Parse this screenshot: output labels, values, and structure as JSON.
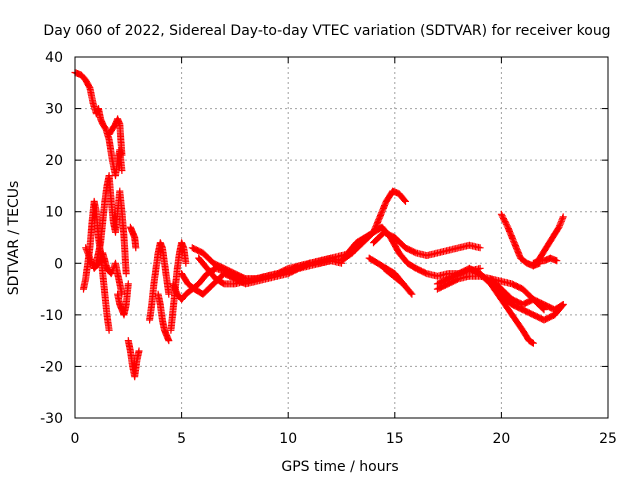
{
  "chart_data": {
    "type": "scatter",
    "title": "Day 060 of 2022, Sidereal Day-to-day VTEC variation (SDTVAR) for receiver koug",
    "xlabel": "GPS time / hours",
    "ylabel": "SDTVAR / TECUs",
    "xlim": [
      0,
      25
    ],
    "ylim": [
      -30,
      40
    ],
    "xticks": [
      0,
      5,
      10,
      15,
      20,
      25
    ],
    "yticks": [
      -30,
      -20,
      -10,
      0,
      10,
      20,
      30,
      40
    ],
    "xtick_labels": [
      "0",
      "5",
      "10",
      "15",
      "20",
      "25"
    ],
    "ytick_labels": [
      "-30",
      "-20",
      "-10",
      "0",
      "10",
      "20",
      "30",
      "40"
    ],
    "grid": true,
    "marker": "+",
    "color": "#ff0000",
    "series": [
      {
        "name": "track-1",
        "x": [
          0.0,
          0.3,
          0.5,
          0.7,
          0.85,
          1.0,
          1.1,
          1.2,
          1.3,
          1.45,
          1.6,
          1.75,
          1.9,
          2.0,
          2.1,
          2.2
        ],
        "y": [
          37,
          36.5,
          35.5,
          34,
          31,
          29,
          30,
          28,
          27,
          26,
          24,
          20,
          17,
          20,
          22,
          18
        ]
      },
      {
        "name": "track-2",
        "x": [
          1.6,
          1.75,
          1.9,
          2.0,
          2.1,
          2.15,
          2.2
        ],
        "y": [
          25,
          26,
          27,
          28,
          27,
          24,
          21
        ]
      },
      {
        "name": "track-3",
        "x": [
          0.4,
          0.5,
          0.6,
          0.7,
          0.8,
          0.9,
          1.0,
          1.1,
          1.2,
          1.3,
          1.4,
          1.5,
          1.6
        ],
        "y": [
          -5,
          -3,
          0,
          3,
          8,
          12,
          10,
          5,
          2,
          -2,
          -6,
          -10,
          -13
        ]
      },
      {
        "name": "track-4",
        "x": [
          1.0,
          1.1,
          1.2,
          1.3,
          1.4,
          1.5,
          1.6,
          1.7,
          1.8,
          1.9,
          2.0,
          2.1,
          2.2,
          2.3,
          2.4
        ],
        "y": [
          0,
          2,
          4,
          8,
          12,
          15,
          17,
          12,
          8,
          6,
          10,
          14,
          10,
          5,
          -2
        ]
      },
      {
        "name": "track-5",
        "x": [
          0.5,
          0.7,
          0.9,
          1.1,
          1.3,
          1.5,
          1.7,
          1.9,
          2.1,
          2.2
        ],
        "y": [
          3,
          1,
          -1,
          0,
          2,
          -1,
          -2,
          0,
          -4,
          -6
        ]
      },
      {
        "name": "track-6",
        "x": [
          2.0,
          2.1,
          2.2,
          2.3,
          2.4,
          2.5
        ],
        "y": [
          -6,
          -8,
          -9,
          -10,
          -8,
          -4
        ]
      },
      {
        "name": "track-7",
        "x": [
          2.5,
          2.6,
          2.7,
          2.8,
          2.9,
          3.0
        ],
        "y": [
          -15,
          -17,
          -20,
          -22,
          -19,
          -17
        ]
      },
      {
        "name": "track-8",
        "x": [
          2.6,
          2.7,
          2.8,
          2.85
        ],
        "y": [
          7,
          6,
          5,
          3
        ]
      },
      {
        "name": "track-9",
        "x": [
          3.5,
          3.6,
          3.7,
          3.8,
          3.9,
          4.0,
          4.1,
          4.2,
          4.3,
          4.4
        ],
        "y": [
          -11,
          -8,
          -4,
          -1,
          2,
          4,
          3,
          0,
          -3,
          -6
        ]
      },
      {
        "name": "track-10",
        "x": [
          3.9,
          4.0,
          4.1,
          4.2,
          4.3,
          4.4
        ],
        "y": [
          -6,
          -8,
          -11,
          -13,
          -14,
          -15
        ]
      },
      {
        "name": "track-11",
        "x": [
          4.5,
          4.6,
          4.7,
          4.8,
          4.9,
          5.0,
          5.1,
          5.2
        ],
        "y": [
          -13,
          -9,
          -5,
          -1,
          2,
          4,
          3,
          0
        ]
      },
      {
        "name": "track-12",
        "x": [
          4.6,
          4.8,
          5.0,
          5.2,
          5.5,
          5.8,
          6.2,
          6.6,
          7.0,
          7.5,
          8.0,
          8.5,
          9.0,
          9.5,
          10.0,
          10.5,
          11.0,
          11.5,
          12.0
        ],
        "y": [
          -4,
          -6,
          -7,
          -6,
          -5,
          -4,
          -2,
          -1,
          -1.5,
          -2.5,
          -3,
          -3,
          -2.5,
          -2,
          -1.5,
          -1,
          -0.5,
          0,
          0.5
        ]
      },
      {
        "name": "track-13",
        "x": [
          5.0,
          5.3,
          5.6,
          6.0,
          6.5,
          7.0,
          7.5,
          8.0,
          8.5,
          9.0,
          9.5,
          10.0,
          10.5,
          11.0,
          11.5,
          12.0,
          12.5
        ],
        "y": [
          -2,
          -4,
          -5,
          -6,
          -4,
          -2,
          -3,
          -4,
          -3.5,
          -3,
          -2.5,
          -2,
          -1,
          0,
          0.5,
          1,
          0.5
        ]
      },
      {
        "name": "track-14",
        "x": [
          5.5,
          6.0,
          6.5,
          7.0,
          7.5,
          8.0,
          8.5,
          9.0,
          9.5,
          10.0,
          10.5,
          11.0,
          11.5,
          12.0,
          12.5,
          13.0
        ],
        "y": [
          3,
          2,
          0,
          -1,
          -2,
          -3,
          -3,
          -2.5,
          -2,
          -1.5,
          -0.5,
          0,
          0.5,
          1,
          1.5,
          2
        ]
      },
      {
        "name": "track-15",
        "x": [
          5.8,
          6.2,
          6.6,
          7.0,
          7.5,
          8.0,
          8.5,
          9.0,
          9.5,
          10.0,
          10.5,
          11.0,
          11.5,
          12.0,
          12.5
        ],
        "y": [
          1,
          -1,
          -3,
          -4,
          -4,
          -3.5,
          -3,
          -2.5,
          -2,
          -1,
          -0.5,
          0,
          0,
          0.5,
          0
        ]
      },
      {
        "name": "track-16",
        "x": [
          12.5,
          13.0,
          13.5,
          14.0,
          14.3,
          14.6,
          14.9,
          15.2,
          15.5
        ],
        "y": [
          0.5,
          2,
          4,
          6,
          9,
          12,
          14,
          13.5,
          12
        ]
      },
      {
        "name": "track-17",
        "x": [
          12.8,
          13.2,
          13.6,
          14.0,
          14.4,
          14.8,
          15.2,
          15.6,
          16.0,
          16.5,
          17.0,
          17.5,
          18.0,
          18.5,
          19.0
        ],
        "y": [
          2,
          4,
          5,
          6,
          7,
          5,
          2,
          0,
          -1,
          -2,
          -2.5,
          -2,
          -2,
          -1.5,
          -1
        ]
      },
      {
        "name": "track-18",
        "x": [
          14.0,
          14.5,
          15.0,
          15.5,
          16.0,
          16.5,
          17.0,
          17.5,
          18.0,
          18.5,
          19.0
        ],
        "y": [
          4,
          6,
          5,
          3,
          2,
          1.5,
          2,
          2.5,
          3,
          3.5,
          3
        ]
      },
      {
        "name": "track-19",
        "x": [
          13.8,
          14.2,
          14.6,
          15.0,
          15.4,
          15.8
        ],
        "y": [
          1,
          0,
          -1,
          -2,
          -4,
          -6
        ]
      },
      {
        "name": "track-20",
        "x": [
          14.5,
          14.8,
          15.1,
          15.4
        ],
        "y": [
          -1,
          -2,
          -3,
          -4
        ]
      },
      {
        "name": "track-21",
        "x": [
          17.0,
          17.5,
          18.0,
          18.5,
          19.0,
          19.5,
          20.0,
          20.5,
          21.0,
          21.5,
          22.0,
          22.5,
          22.9
        ],
        "y": [
          -4,
          -3,
          -2,
          -1,
          -2,
          -4,
          -6,
          -8,
          -9,
          -10,
          -11,
          -10,
          -8
        ]
      },
      {
        "name": "track-22",
        "x": [
          18.5,
          19.0,
          19.5,
          20.0,
          20.5,
          21.0,
          21.3,
          21.5
        ],
        "y": [
          -1,
          -2,
          -4,
          -7,
          -10,
          -13,
          -15,
          -15.5
        ]
      },
      {
        "name": "track-23",
        "x": [
          17.0,
          17.5,
          18.0,
          18.5,
          19.0,
          19.5,
          20.0,
          20.5,
          21.0,
          21.5,
          22.0
        ],
        "y": [
          -5,
          -4,
          -3,
          -2.5,
          -2.5,
          -3,
          -3.5,
          -4,
          -5,
          -7,
          -9
        ]
      },
      {
        "name": "track-24",
        "x": [
          19.5,
          20.0,
          20.5,
          21.0,
          21.5,
          22.0,
          22.5,
          22.9
        ],
        "y": [
          -3,
          -5,
          -7,
          -8,
          -7,
          -8,
          -9,
          -8
        ]
      },
      {
        "name": "track-25",
        "x": [
          20.0,
          20.3,
          20.6,
          20.9,
          21.2,
          21.5,
          21.8
        ],
        "y": [
          9.5,
          7,
          4,
          1,
          0,
          -0.5,
          0
        ]
      },
      {
        "name": "track-26",
        "x": [
          21.5,
          21.8,
          22.1,
          22.4,
          22.7,
          22.9
        ],
        "y": [
          -0.5,
          1,
          3,
          5,
          7,
          9
        ]
      },
      {
        "name": "track-27",
        "x": [
          21.5,
          21.8,
          22.0,
          22.3,
          22.6
        ],
        "y": [
          0,
          0.5,
          0.5,
          1,
          0.5
        ]
      }
    ]
  }
}
